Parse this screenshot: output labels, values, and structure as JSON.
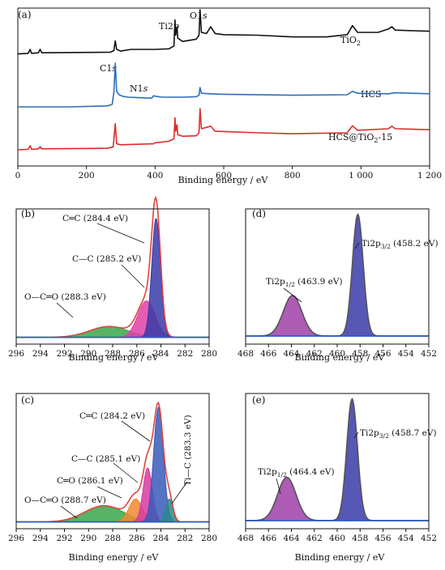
{
  "chart_data": [
    {
      "type": "line",
      "panel": "(a)",
      "xlabel": "Binding energy / eV",
      "xlim": [
        0,
        1200
      ],
      "xticks": [
        "0",
        "200",
        "400",
        "600",
        "800",
        "1 000",
        "1 200"
      ],
      "series": [
        {
          "name": "TiO₂",
          "color": "#111111",
          "points": [
            [
              0,
              0.22
            ],
            [
              30,
              0.23
            ],
            [
              36,
              0.3
            ],
            [
              40,
              0.23
            ],
            [
              60,
              0.24
            ],
            [
              65,
              0.3
            ],
            [
              70,
              0.24
            ],
            [
              270,
              0.25
            ],
            [
              280,
              0.28
            ],
            [
              284,
              0.45
            ],
            [
              288,
              0.3
            ],
            [
              300,
              0.27
            ],
            [
              330,
              0.3
            ],
            [
              400,
              0.3
            ],
            [
              440,
              0.31
            ],
            [
              455,
              0.36
            ],
            [
              458,
              0.82
            ],
            [
              460,
              0.55
            ],
            [
              464,
              0.7
            ],
            [
              466,
              0.5
            ],
            [
              480,
              0.44
            ],
            [
              520,
              0.48
            ],
            [
              528,
              0.55
            ],
            [
              531,
              1.0
            ],
            [
              535,
              0.6
            ],
            [
              550,
              0.58
            ],
            [
              562,
              0.7
            ],
            [
              575,
              0.58
            ],
            [
              600,
              0.56
            ],
            [
              700,
              0.55
            ],
            [
              800,
              0.52
            ],
            [
              900,
              0.52
            ],
            [
              960,
              0.56
            ],
            [
              975,
              0.72
            ],
            [
              990,
              0.6
            ],
            [
              1050,
              0.6
            ],
            [
              1080,
              0.66
            ],
            [
              1090,
              0.7
            ],
            [
              1100,
              0.64
            ],
            [
              1200,
              0.62
            ]
          ]
        },
        {
          "name": "HCS",
          "color": "#2b6fb8",
          "points": [
            [
              0,
              0.1
            ],
            [
              150,
              0.1
            ],
            [
              260,
              0.12
            ],
            [
              275,
              0.15
            ],
            [
              280,
              0.4
            ],
            [
              284,
              1.0
            ],
            [
              288,
              0.42
            ],
            [
              295,
              0.35
            ],
            [
              305,
              0.32
            ],
            [
              320,
              0.3
            ],
            [
              350,
              0.29
            ],
            [
              390,
              0.28
            ],
            [
              396,
              0.33
            ],
            [
              400,
              0.32
            ],
            [
              420,
              0.3
            ],
            [
              480,
              0.3
            ],
            [
              520,
              0.31
            ],
            [
              528,
              0.34
            ],
            [
              531,
              0.5
            ],
            [
              535,
              0.38
            ],
            [
              560,
              0.37
            ],
            [
              600,
              0.36
            ],
            [
              800,
              0.34
            ],
            [
              960,
              0.35
            ],
            [
              975,
              0.42
            ],
            [
              990,
              0.38
            ],
            [
              1080,
              0.37
            ],
            [
              1100,
              0.39
            ],
            [
              1200,
              0.37
            ]
          ]
        },
        {
          "name": "HCS@TiO₂-15",
          "color": "#e02a2a",
          "points": [
            [
              0,
              0.08
            ],
            [
              30,
              0.09
            ],
            [
              36,
              0.16
            ],
            [
              40,
              0.09
            ],
            [
              60,
              0.1
            ],
            [
              65,
              0.14
            ],
            [
              70,
              0.1
            ],
            [
              260,
              0.11
            ],
            [
              278,
              0.14
            ],
            [
              284,
              0.6
            ],
            [
              288,
              0.2
            ],
            [
              300,
              0.18
            ],
            [
              396,
              0.2
            ],
            [
              400,
              0.22
            ],
            [
              440,
              0.25
            ],
            [
              455,
              0.3
            ],
            [
              458,
              0.72
            ],
            [
              460,
              0.45
            ],
            [
              464,
              0.58
            ],
            [
              466,
              0.38
            ],
            [
              480,
              0.35
            ],
            [
              520,
              0.36
            ],
            [
              528,
              0.42
            ],
            [
              531,
              0.9
            ],
            [
              535,
              0.5
            ],
            [
              562,
              0.55
            ],
            [
              575,
              0.45
            ],
            [
              700,
              0.42
            ],
            [
              800,
              0.4
            ],
            [
              960,
              0.42
            ],
            [
              975,
              0.56
            ],
            [
              990,
              0.47
            ],
            [
              1080,
              0.5
            ],
            [
              1090,
              0.55
            ],
            [
              1100,
              0.5
            ],
            [
              1200,
              0.48
            ]
          ]
        }
      ],
      "annotations": {
        "ti2p": "Ti2p",
        "o1s": "O1s",
        "c1s": "C1s",
        "n1s": "N1s",
        "tio2": "TiO₂",
        "hcs": "HCS",
        "hcs_tio2": "HCS@TiO₂-15"
      }
    },
    {
      "type": "area",
      "panel": "(b)",
      "xlabel": "Binding energy / eV",
      "xlim": [
        296,
        280
      ],
      "reversed": true,
      "xticks": [
        "296",
        "294",
        "292",
        "290",
        "288",
        "286",
        "284",
        "282",
        "280"
      ],
      "baseline": 0.05,
      "envelope_color": "#e0443c",
      "peaks": [
        {
          "label": "O—C═O (288.3 eV)",
          "center": 288.3,
          "height": 0.08,
          "fwhm": 3.8,
          "color": "#3aa64a"
        },
        {
          "label": "C—C (285.2 eV)",
          "center": 285.2,
          "height": 0.27,
          "fwhm": 1.7,
          "color": "#e040a8"
        },
        {
          "label": "C═C (284.4 eV)",
          "center": 284.4,
          "height": 0.88,
          "fwhm": 0.85,
          "color": "#3a3aa8"
        }
      ]
    },
    {
      "type": "area",
      "panel": "(c)",
      "xlabel": "Binding energy / eV",
      "xlim": [
        296,
        280
      ],
      "reversed": true,
      "xticks": [
        "296",
        "294",
        "292",
        "290",
        "288",
        "286",
        "284",
        "282",
        "280"
      ],
      "baseline": 0.05,
      "envelope_color": "#e0443c",
      "peaks": [
        {
          "label": "O—C═O (288.7 eV)",
          "center": 288.7,
          "height": 0.12,
          "fwhm": 3.8,
          "color": "#3aa64a"
        },
        {
          "label": "C═O (286.1 eV)",
          "center": 286.1,
          "height": 0.17,
          "fwhm": 1.3,
          "color": "#f08a30"
        },
        {
          "label": "C—C (285.1 eV)",
          "center": 285.1,
          "height": 0.4,
          "fwhm": 0.9,
          "color": "#d83aa0"
        },
        {
          "label": "C═C (284.2 eV)",
          "center": 284.2,
          "height": 0.85,
          "fwhm": 0.95,
          "color": "#3a5ab8"
        },
        {
          "label": "Ti—C (283.3 eV)",
          "center": 283.3,
          "height": 0.17,
          "fwhm": 0.7,
          "color": "#2a8a8a"
        }
      ]
    },
    {
      "type": "area",
      "panel": "(d)",
      "xlabel": "Binding energy / eV",
      "xlim": [
        468,
        452
      ],
      "reversed": true,
      "xticks": [
        "468",
        "466",
        "464",
        "462",
        "460",
        "458",
        "456",
        "454",
        "452"
      ],
      "baseline": 0.06,
      "envelope_color": "#555555",
      "peaks": [
        {
          "label": "Ti2p1/2 (463.9 eV)",
          "label_main": "Ti2p",
          "label_sub": "1/2",
          "label_tail": " (463.9 eV)",
          "center": 463.9,
          "height": 0.3,
          "fwhm": 1.9,
          "color": "#a040a8"
        },
        {
          "label": "Ti2p3/2 (458.2 eV)",
          "label_main": "Ti2p",
          "label_sub": "3/2",
          "label_tail": " (458.2 eV)",
          "center": 458.2,
          "height": 0.9,
          "fwhm": 1.1,
          "color": "#3a3aa8"
        }
      ]
    },
    {
      "type": "area",
      "panel": "(e)",
      "xlabel": "Binding energy / eV",
      "xlim": [
        468,
        452
      ],
      "reversed": true,
      "xticks": [
        "468",
        "466",
        "464",
        "462",
        "460",
        "458",
        "456",
        "454",
        "452"
      ],
      "baseline": 0.06,
      "envelope_color": "#555555",
      "peaks": [
        {
          "label": "Ti2p1/2 (464.4 eV)",
          "label_main": "Ti2p",
          "label_sub": "1/2",
          "label_tail": " (464.4 eV)",
          "center": 464.4,
          "height": 0.32,
          "fwhm": 1.9,
          "color": "#a040a8"
        },
        {
          "label": "Ti2p3/2 (458.7 eV)",
          "label_main": "Ti2p",
          "label_sub": "3/2",
          "label_tail": " (458.7 eV)",
          "center": 458.7,
          "height": 0.9,
          "fwhm": 1.1,
          "color": "#3a3aa8"
        }
      ]
    }
  ],
  "colors": {
    "baseline": "#2a5ac8",
    "axis": "#111111"
  }
}
